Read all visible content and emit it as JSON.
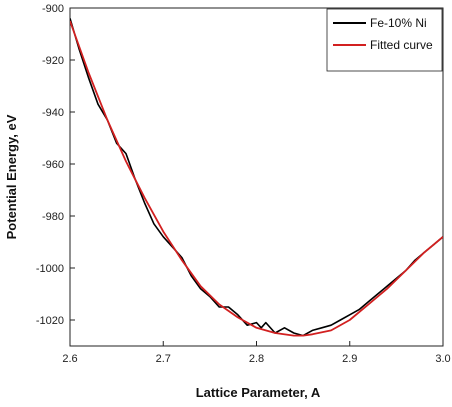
{
  "chart_data": {
    "type": "line",
    "title": "",
    "xlabel": "Lattice Parameter, A",
    "ylabel": "Potential Energy, eV",
    "xlim": [
      2.6,
      3.0
    ],
    "ylim": [
      -1030,
      -900
    ],
    "xticks": [
      2.6,
      2.7,
      2.8,
      2.9,
      3.0
    ],
    "xtick_labels": [
      "2.6",
      "2.7",
      "2.8",
      "2.9",
      "3.0"
    ],
    "yticks": [
      -900,
      -920,
      -940,
      -960,
      -980,
      -1000,
      -1020
    ],
    "ytick_labels": [
      "-900",
      "-920",
      "-940",
      "-960",
      "-980",
      "-1000",
      "-1020"
    ],
    "grid": false,
    "legend_position": "top-right",
    "series": [
      {
        "name": "Fe-10% Ni",
        "color": "#000000",
        "x": [
          2.6,
          2.61,
          2.62,
          2.63,
          2.64,
          2.65,
          2.66,
          2.67,
          2.68,
          2.69,
          2.7,
          2.71,
          2.72,
          2.73,
          2.74,
          2.75,
          2.76,
          2.77,
          2.78,
          2.79,
          2.8,
          2.805,
          2.81,
          2.82,
          2.83,
          2.84,
          2.85,
          2.86,
          2.87,
          2.88,
          2.89,
          2.9,
          2.91,
          2.92,
          2.93,
          2.94,
          2.95,
          2.96,
          2.97,
          2.98,
          2.99,
          3.0
        ],
        "y": [
          -904,
          -916,
          -927,
          -937,
          -943,
          -952,
          -956,
          -966,
          -975,
          -983,
          -988,
          -992,
          -996,
          -1003,
          -1008,
          -1011,
          -1015,
          -1015,
          -1018,
          -1022,
          -1021,
          -1023,
          -1021,
          -1025,
          -1023,
          -1025,
          -1026,
          -1024,
          -1023,
          -1022,
          -1020,
          -1018,
          -1016,
          -1013,
          -1010,
          -1007,
          -1004,
          -1001,
          -997,
          -994,
          -991,
          -988
        ]
      },
      {
        "name": "Fitted curve",
        "color": "#d22020",
        "x": [
          2.6,
          2.62,
          2.64,
          2.66,
          2.68,
          2.7,
          2.72,
          2.74,
          2.76,
          2.78,
          2.8,
          2.82,
          2.84,
          2.85,
          2.86,
          2.88,
          2.9,
          2.92,
          2.94,
          2.96,
          2.98,
          3.0
        ],
        "y": [
          -905,
          -925,
          -943,
          -959,
          -973,
          -986,
          -997,
          -1007,
          -1014,
          -1019,
          -1023,
          -1025,
          -1026,
          -1026,
          -1025.5,
          -1024,
          -1020,
          -1014,
          -1008,
          -1001,
          -994,
          -988
        ]
      }
    ]
  }
}
